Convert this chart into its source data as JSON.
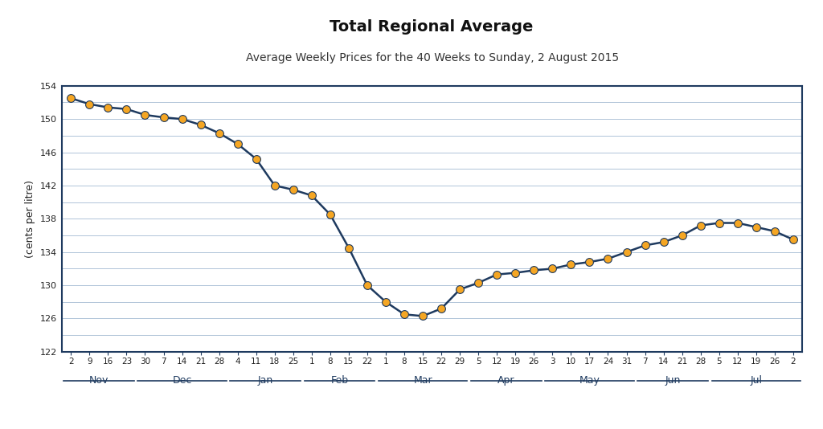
{
  "title": "Total Regional Average",
  "subtitle": "Average Weekly Prices for the 40 Weeks to Sunday, 2 August 2015",
  "ylabel": "(cents per litre)",
  "ylim": [
    122,
    154
  ],
  "ytick_major": [
    122,
    126,
    130,
    134,
    138,
    142,
    146,
    150,
    154
  ],
  "ytick_minor": [
    122,
    124,
    126,
    128,
    130,
    132,
    134,
    136,
    138,
    140,
    142,
    144,
    146,
    148,
    150,
    152,
    154
  ],
  "background_color": "#ffffff",
  "line_color": "#1e3a5f",
  "marker_facecolor": "#f5a623",
  "marker_edgecolor": "#1e3a5f",
  "x_tick_labels": [
    "2",
    "9",
    "16",
    "23",
    "30",
    "7",
    "14",
    "21",
    "28",
    "4",
    "11",
    "18",
    "25",
    "1",
    "8",
    "15",
    "22",
    "1",
    "8",
    "15",
    "22",
    "29",
    "5",
    "12",
    "19",
    "26",
    "3",
    "10",
    "17",
    "24",
    "31",
    "7",
    "14",
    "21",
    "28",
    "5",
    "12",
    "19",
    "26",
    "2"
  ],
  "month_labels": [
    "Nov",
    "Dec",
    "Jan",
    "Feb",
    "Mar",
    "Apr",
    "May",
    "Jun",
    "Jul"
  ],
  "month_start_idx": [
    0,
    4,
    9,
    13,
    17,
    22,
    26,
    31,
    35
  ],
  "month_end_idx": [
    3,
    8,
    12,
    16,
    21,
    25,
    30,
    34,
    39
  ],
  "values": [
    152.5,
    151.8,
    151.4,
    151.2,
    150.5,
    150.2,
    150.0,
    149.3,
    148.3,
    147.0,
    145.2,
    142.0,
    141.5,
    140.8,
    138.5,
    134.5,
    130.0,
    128.0,
    126.5,
    126.3,
    127.2,
    129.5,
    130.3,
    131.3,
    131.5,
    131.8,
    132.0,
    132.5,
    132.8,
    133.2,
    134.0,
    134.8,
    135.2,
    136.0,
    137.2,
    137.5,
    137.5,
    137.0,
    136.5,
    135.5
  ],
  "spine_color": "#1e3a5f",
  "grid_color": "#b0c4d8",
  "title_fontsize": 14,
  "subtitle_fontsize": 10,
  "axis_label_fontsize": 9,
  "tick_label_fontsize": 8,
  "month_label_fontsize": 9
}
